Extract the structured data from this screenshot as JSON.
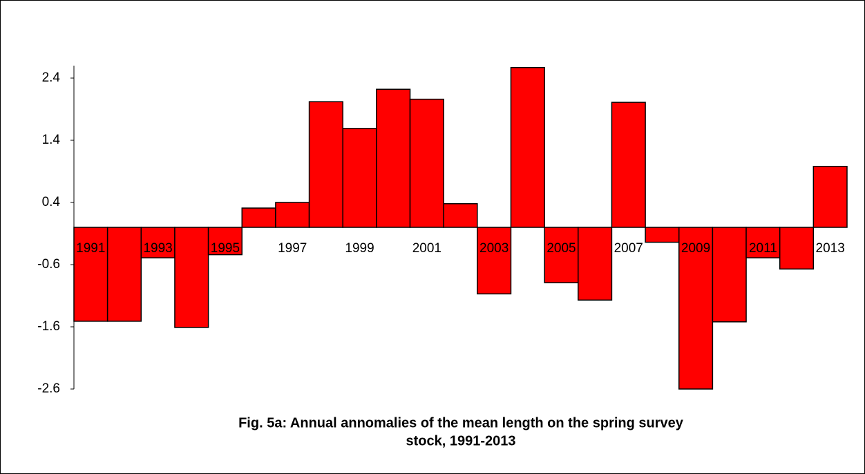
{
  "chart_data": {
    "type": "bar",
    "title": [
      "Fig. 5a: Annual annomalies of the mean length on the spring survey",
      "stock, 1991-2013"
    ],
    "categories": [
      "1991",
      null,
      "1993",
      null,
      "1995",
      null,
      "1997",
      null,
      "1999",
      null,
      "2001",
      null,
      "2003",
      null,
      "2005",
      null,
      "2007",
      null,
      "2009",
      null,
      "2011",
      null,
      "2013"
    ],
    "values": [
      -1.51,
      -1.51,
      -0.49,
      -1.61,
      -0.44,
      0.31,
      0.4,
      2.02,
      1.59,
      2.22,
      2.06,
      0.38,
      -1.07,
      2.57,
      -0.89,
      -1.17,
      2.01,
      -0.24,
      -2.6,
      -1.52,
      -0.49,
      -0.67,
      0.98
    ],
    "color": "#ff0000",
    "ylim": [
      -2.6,
      2.6
    ],
    "yticks": [
      -2.6,
      -1.6,
      -0.6,
      0.4,
      1.4,
      2.4
    ],
    "grid": false
  }
}
